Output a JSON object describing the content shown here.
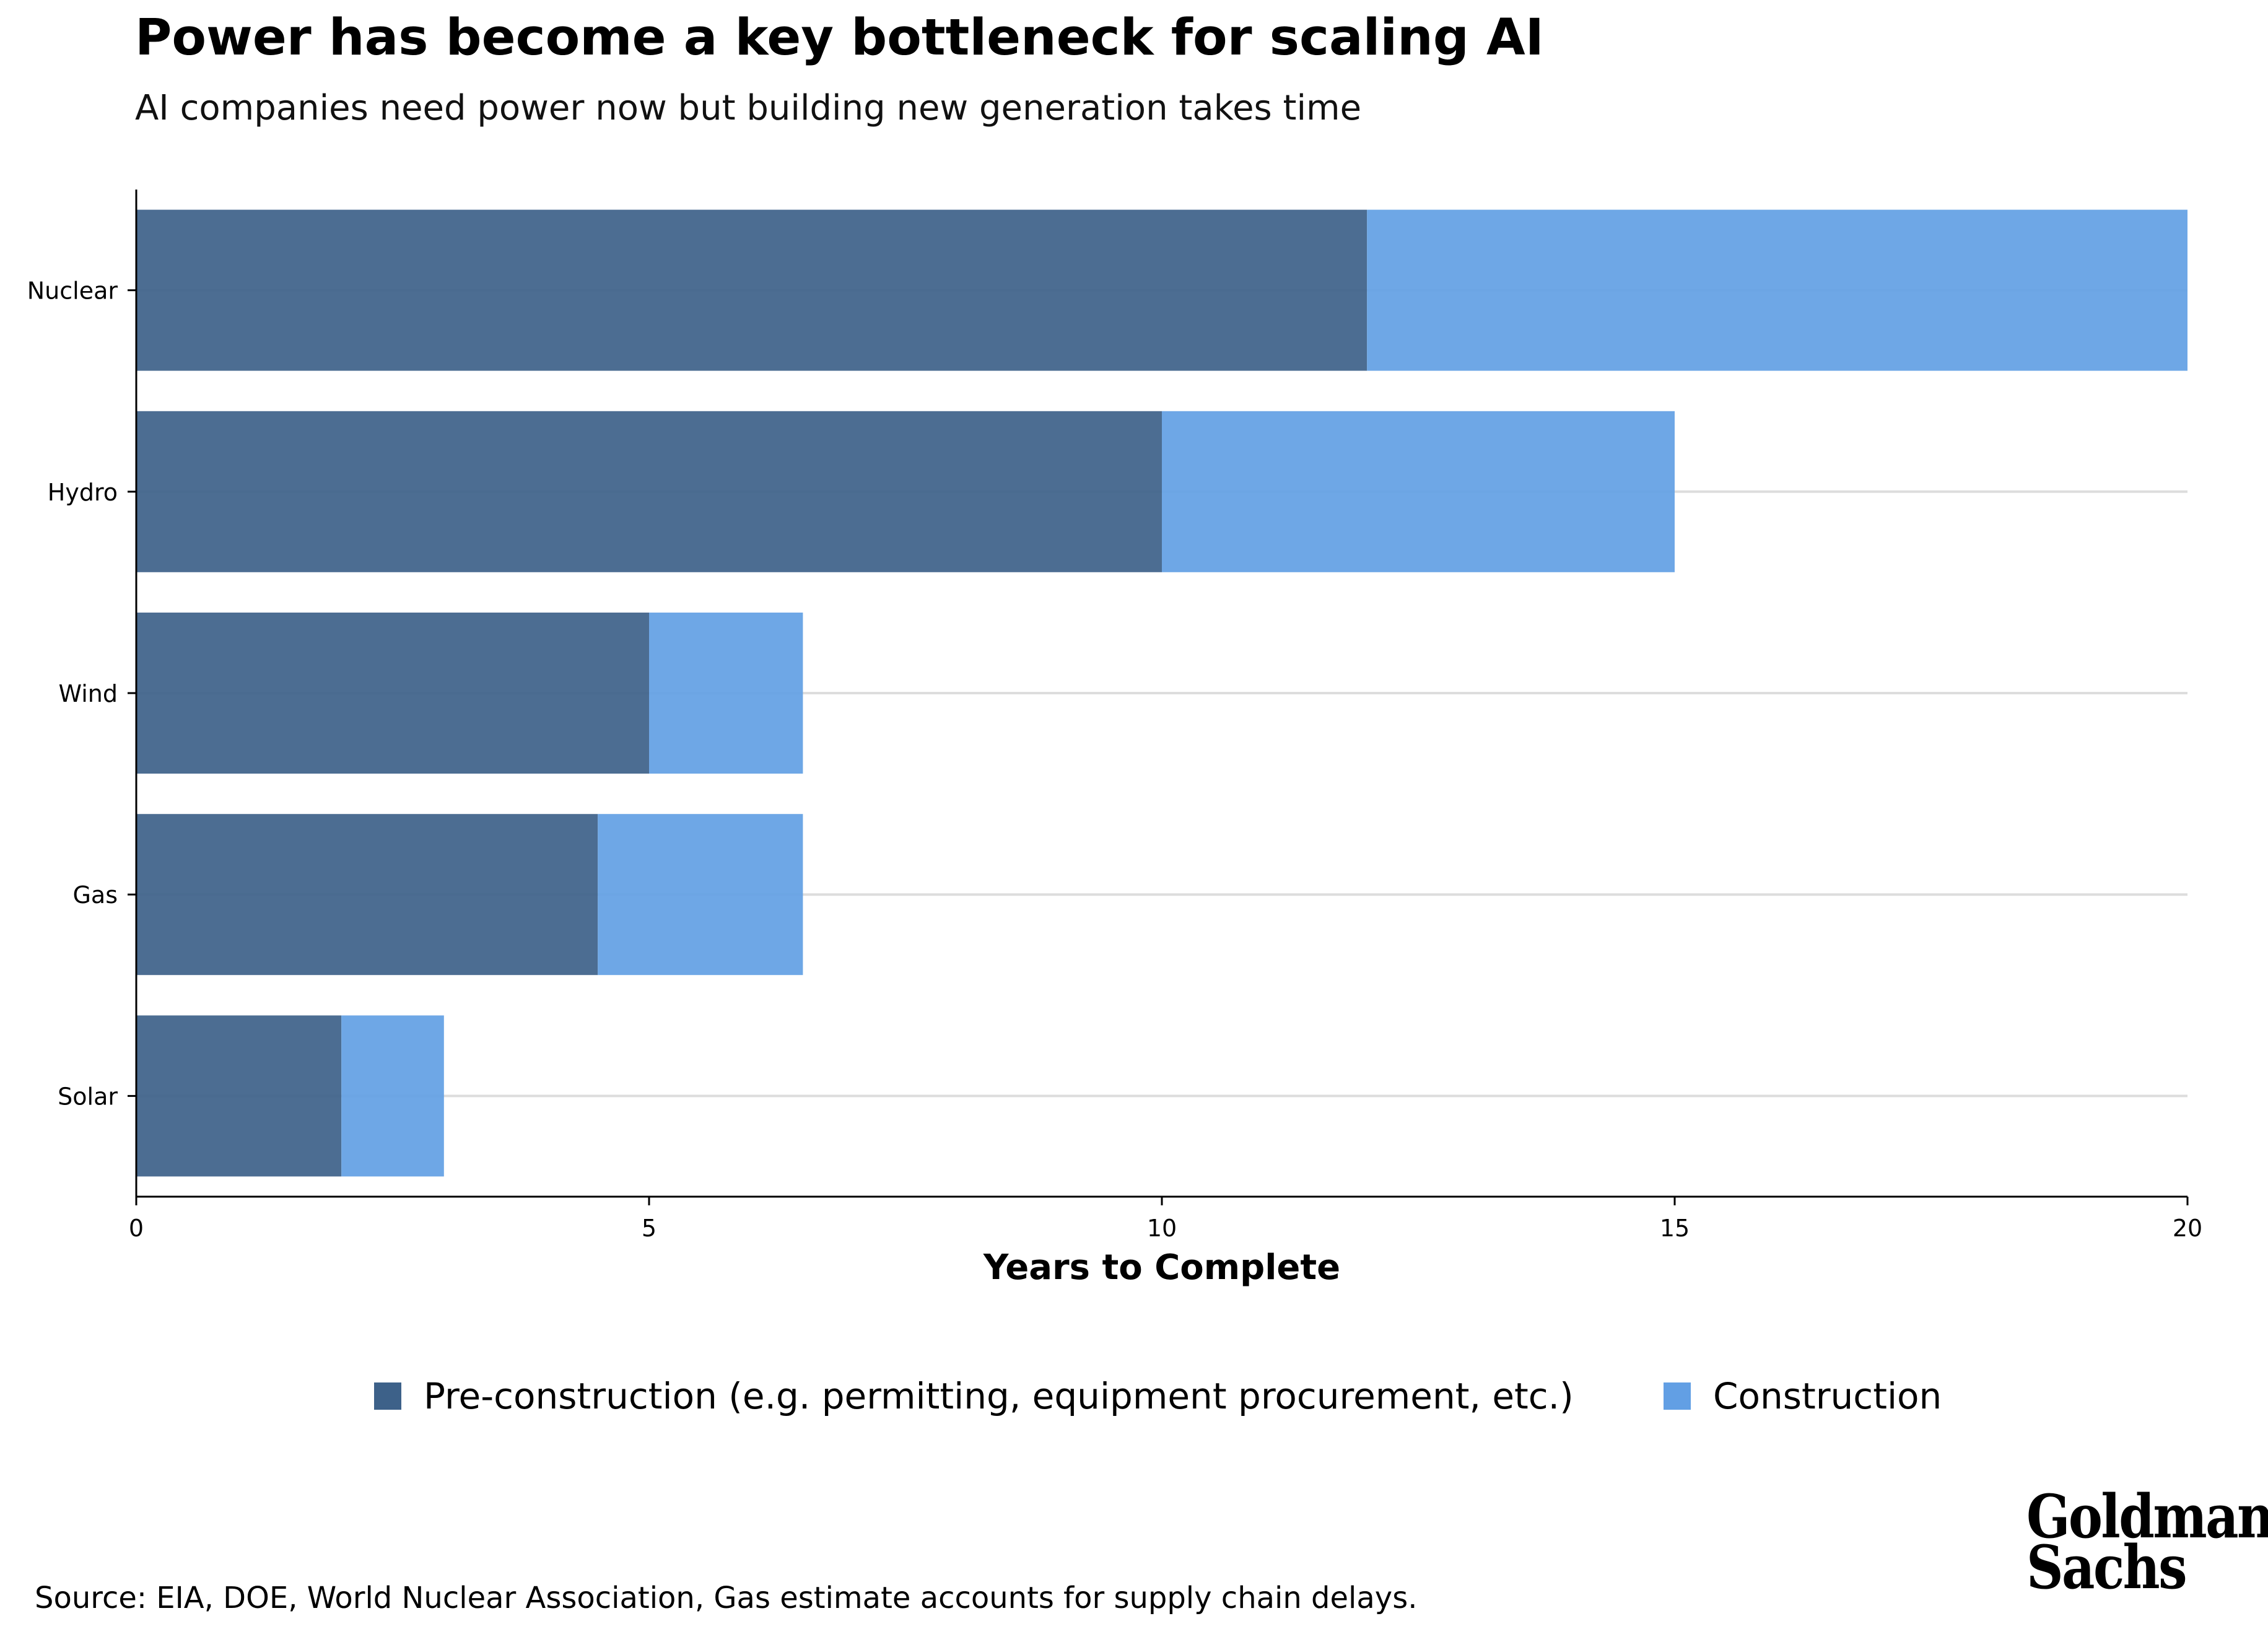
{
  "title": "Power has become a key bottleneck for scaling AI",
  "subtitle": "AI companies need power now but building new generation takes time",
  "source": "Source: EIA, DOE, World Nuclear Association, Gas estimate accounts for supply chain delays.",
  "logo": {
    "line1": "Goldman",
    "line2": "Sachs"
  },
  "colors": {
    "pre_construction": "#3d6189",
    "construction": "#629fe4",
    "grid": "#dddddd",
    "axis": "#000000"
  },
  "chart_data": {
    "type": "bar",
    "orientation": "horizontal",
    "stacked": true,
    "categories": [
      "Nuclear",
      "Hydro",
      "Wind",
      "Gas",
      "Solar"
    ],
    "series": [
      {
        "name": "Pre-construction (e.g. permitting, equipment procurement, etc.)",
        "values": [
          12,
          10,
          5,
          4.5,
          2
        ]
      },
      {
        "name": "Construction",
        "values": [
          8,
          5,
          1.5,
          2,
          1
        ]
      }
    ],
    "xlabel": "Years to Complete",
    "ylabel": "",
    "xlim": [
      0,
      20
    ],
    "xticks": [
      "0",
      "5",
      "10",
      "15",
      "20"
    ],
    "grid": "horizontal lines at categories",
    "legend": "bottom-center"
  }
}
